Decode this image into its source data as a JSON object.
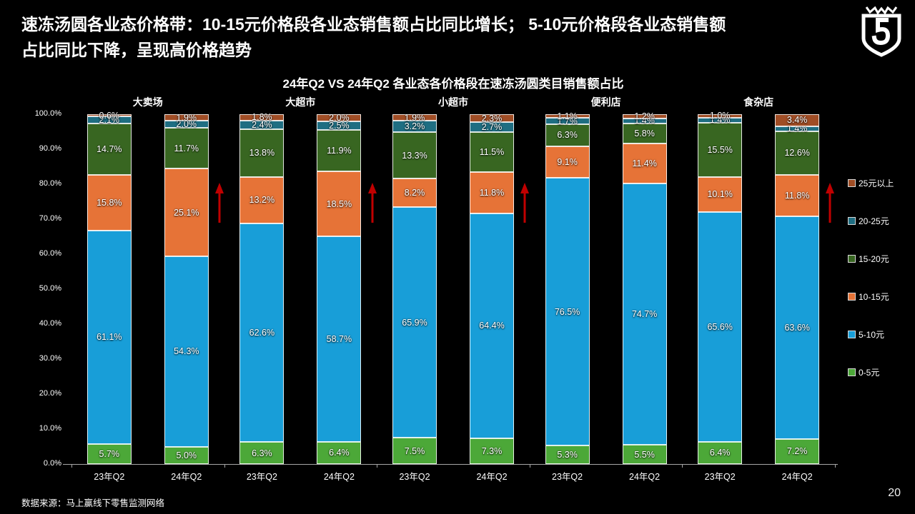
{
  "header": {
    "title_line1": "速冻汤圆各业态价格带：10-15元价格段各业态销售额占比同比增长； 5-10元价格段各业态销售额",
    "title_line2": "占比同比下降，呈现高价格趋势"
  },
  "footer": {
    "source": "数据来源：马上赢线下零售监测网络",
    "page": "20"
  },
  "chart_data": {
    "type": "bar",
    "stacked": true,
    "unit": "percent",
    "title": "24年Q2 VS 24年Q2 各业态各价格段在速冻汤圆类目销售额占比",
    "ylim": [
      0,
      100
    ],
    "grid": false,
    "legend_position": "right",
    "y_ticks_bottom_to_top": [
      "0.0%",
      "10.0%",
      "20.0%",
      "30.0%",
      "40.0%",
      "50.0%",
      "60.0%",
      "70.0%",
      "80.0%",
      "90.0%",
      "100.0%"
    ],
    "series_names_bottom_to_top": [
      "0-5元",
      "5-10元",
      "10-15元",
      "15-20元",
      "20-25元",
      "25元以上"
    ],
    "series_colors_bottom_to_top": [
      "#4CA838",
      "#189ED8",
      "#E67337",
      "#386621",
      "#1F6E82",
      "#A04D25"
    ],
    "legend_top_to_bottom": [
      {
        "label": "25元以上",
        "color": "#A04D25"
      },
      {
        "label": "20-25元",
        "color": "#1F6E82"
      },
      {
        "label": "15-20元",
        "color": "#386621"
      },
      {
        "label": "10-15元",
        "color": "#E67337"
      },
      {
        "label": "5-10元",
        "color": "#189ED8"
      },
      {
        "label": "0-5元",
        "color": "#4CA838"
      }
    ],
    "arrow_color": "#C00000",
    "groups": [
      {
        "name": "大卖场",
        "arrow": true,
        "bars": [
          {
            "label": "23年Q2",
            "values": [
              5.7,
              61.1,
              15.8,
              14.7,
              2.1,
              0.6
            ]
          },
          {
            "label": "24年Q2",
            "values": [
              5.0,
              54.3,
              25.1,
              11.7,
              2.0,
              1.9
            ]
          }
        ]
      },
      {
        "name": "大超市",
        "arrow": true,
        "bars": [
          {
            "label": "23年Q2",
            "values": [
              6.3,
              62.6,
              13.2,
              13.8,
              2.4,
              1.8
            ]
          },
          {
            "label": "24年Q2",
            "values": [
              6.4,
              58.7,
              18.5,
              11.9,
              2.5,
              2.0
            ]
          }
        ]
      },
      {
        "name": "小超市",
        "arrow": true,
        "bars": [
          {
            "label": "23年Q2",
            "values": [
              7.5,
              65.9,
              8.2,
              13.3,
              3.2,
              1.9
            ]
          },
          {
            "label": "24年Q2",
            "values": [
              7.3,
              64.4,
              11.8,
              11.5,
              2.7,
              2.3
            ]
          }
        ]
      },
      {
        "name": "便利店",
        "arrow": false,
        "bars": [
          {
            "label": "23年Q2",
            "values": [
              5.3,
              76.5,
              9.1,
              6.3,
              1.7,
              1.1
            ]
          },
          {
            "label": "24年Q2",
            "values": [
              5.5,
              74.7,
              11.4,
              5.8,
              1.4,
              1.2
            ]
          }
        ]
      },
      {
        "name": "食杂店",
        "arrow": true,
        "bars": [
          {
            "label": "23年Q2",
            "values": [
              6.4,
              65.6,
              10.1,
              15.5,
              1.4,
              1.0
            ]
          },
          {
            "label": "24年Q2",
            "values": [
              7.2,
              63.6,
              11.8,
              12.6,
              1.4,
              3.4
            ]
          }
        ]
      }
    ]
  }
}
